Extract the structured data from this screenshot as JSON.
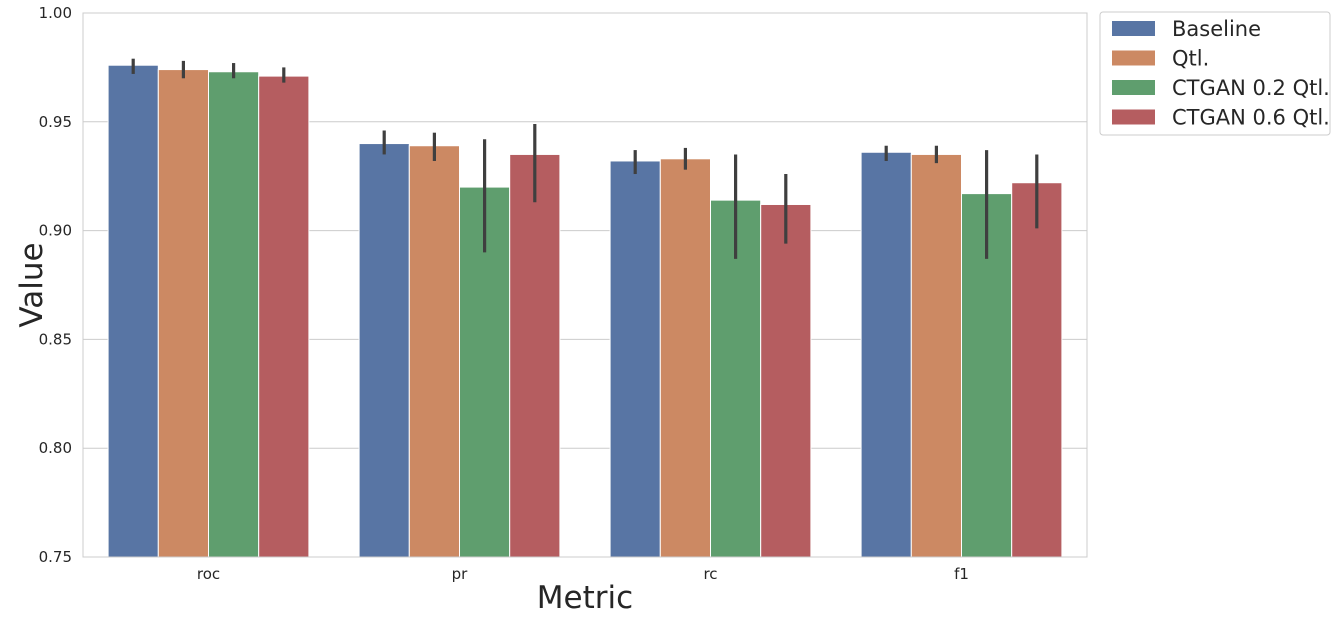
{
  "chart_data": {
    "type": "bar",
    "xlabel": "Metric",
    "ylabel": "Value",
    "categories": [
      "roc",
      "pr",
      "rc",
      "f1"
    ],
    "ylim": [
      0.75,
      1.0
    ],
    "yticks": [
      "0.75",
      "0.80",
      "0.85",
      "0.90",
      "0.95",
      "1.00"
    ],
    "grid": "horizontal",
    "legend_position": "outside-top-right",
    "series": [
      {
        "name": "Baseline",
        "color": "#5875a4",
        "values": [
          0.976,
          0.94,
          0.932,
          0.936
        ],
        "err_low": [
          0.972,
          0.935,
          0.926,
          0.932
        ],
        "err_high": [
          0.979,
          0.946,
          0.937,
          0.939
        ]
      },
      {
        "name": "Qtl.",
        "color": "#cc8963",
        "values": [
          0.974,
          0.939,
          0.933,
          0.935
        ],
        "err_low": [
          0.97,
          0.932,
          0.928,
          0.931
        ],
        "err_high": [
          0.978,
          0.945,
          0.938,
          0.939
        ]
      },
      {
        "name": "CTGAN 0.2 Qtl.",
        "color": "#5f9e6e",
        "values": [
          0.973,
          0.92,
          0.914,
          0.917
        ],
        "err_low": [
          0.97,
          0.89,
          0.887,
          0.887
        ],
        "err_high": [
          0.977,
          0.942,
          0.935,
          0.937
        ]
      },
      {
        "name": "CTGAN 0.6 Qtl.",
        "color": "#b55d60",
        "values": [
          0.971,
          0.935,
          0.912,
          0.922
        ],
        "err_low": [
          0.968,
          0.913,
          0.894,
          0.901
        ],
        "err_high": [
          0.975,
          0.949,
          0.926,
          0.935
        ]
      }
    ]
  }
}
